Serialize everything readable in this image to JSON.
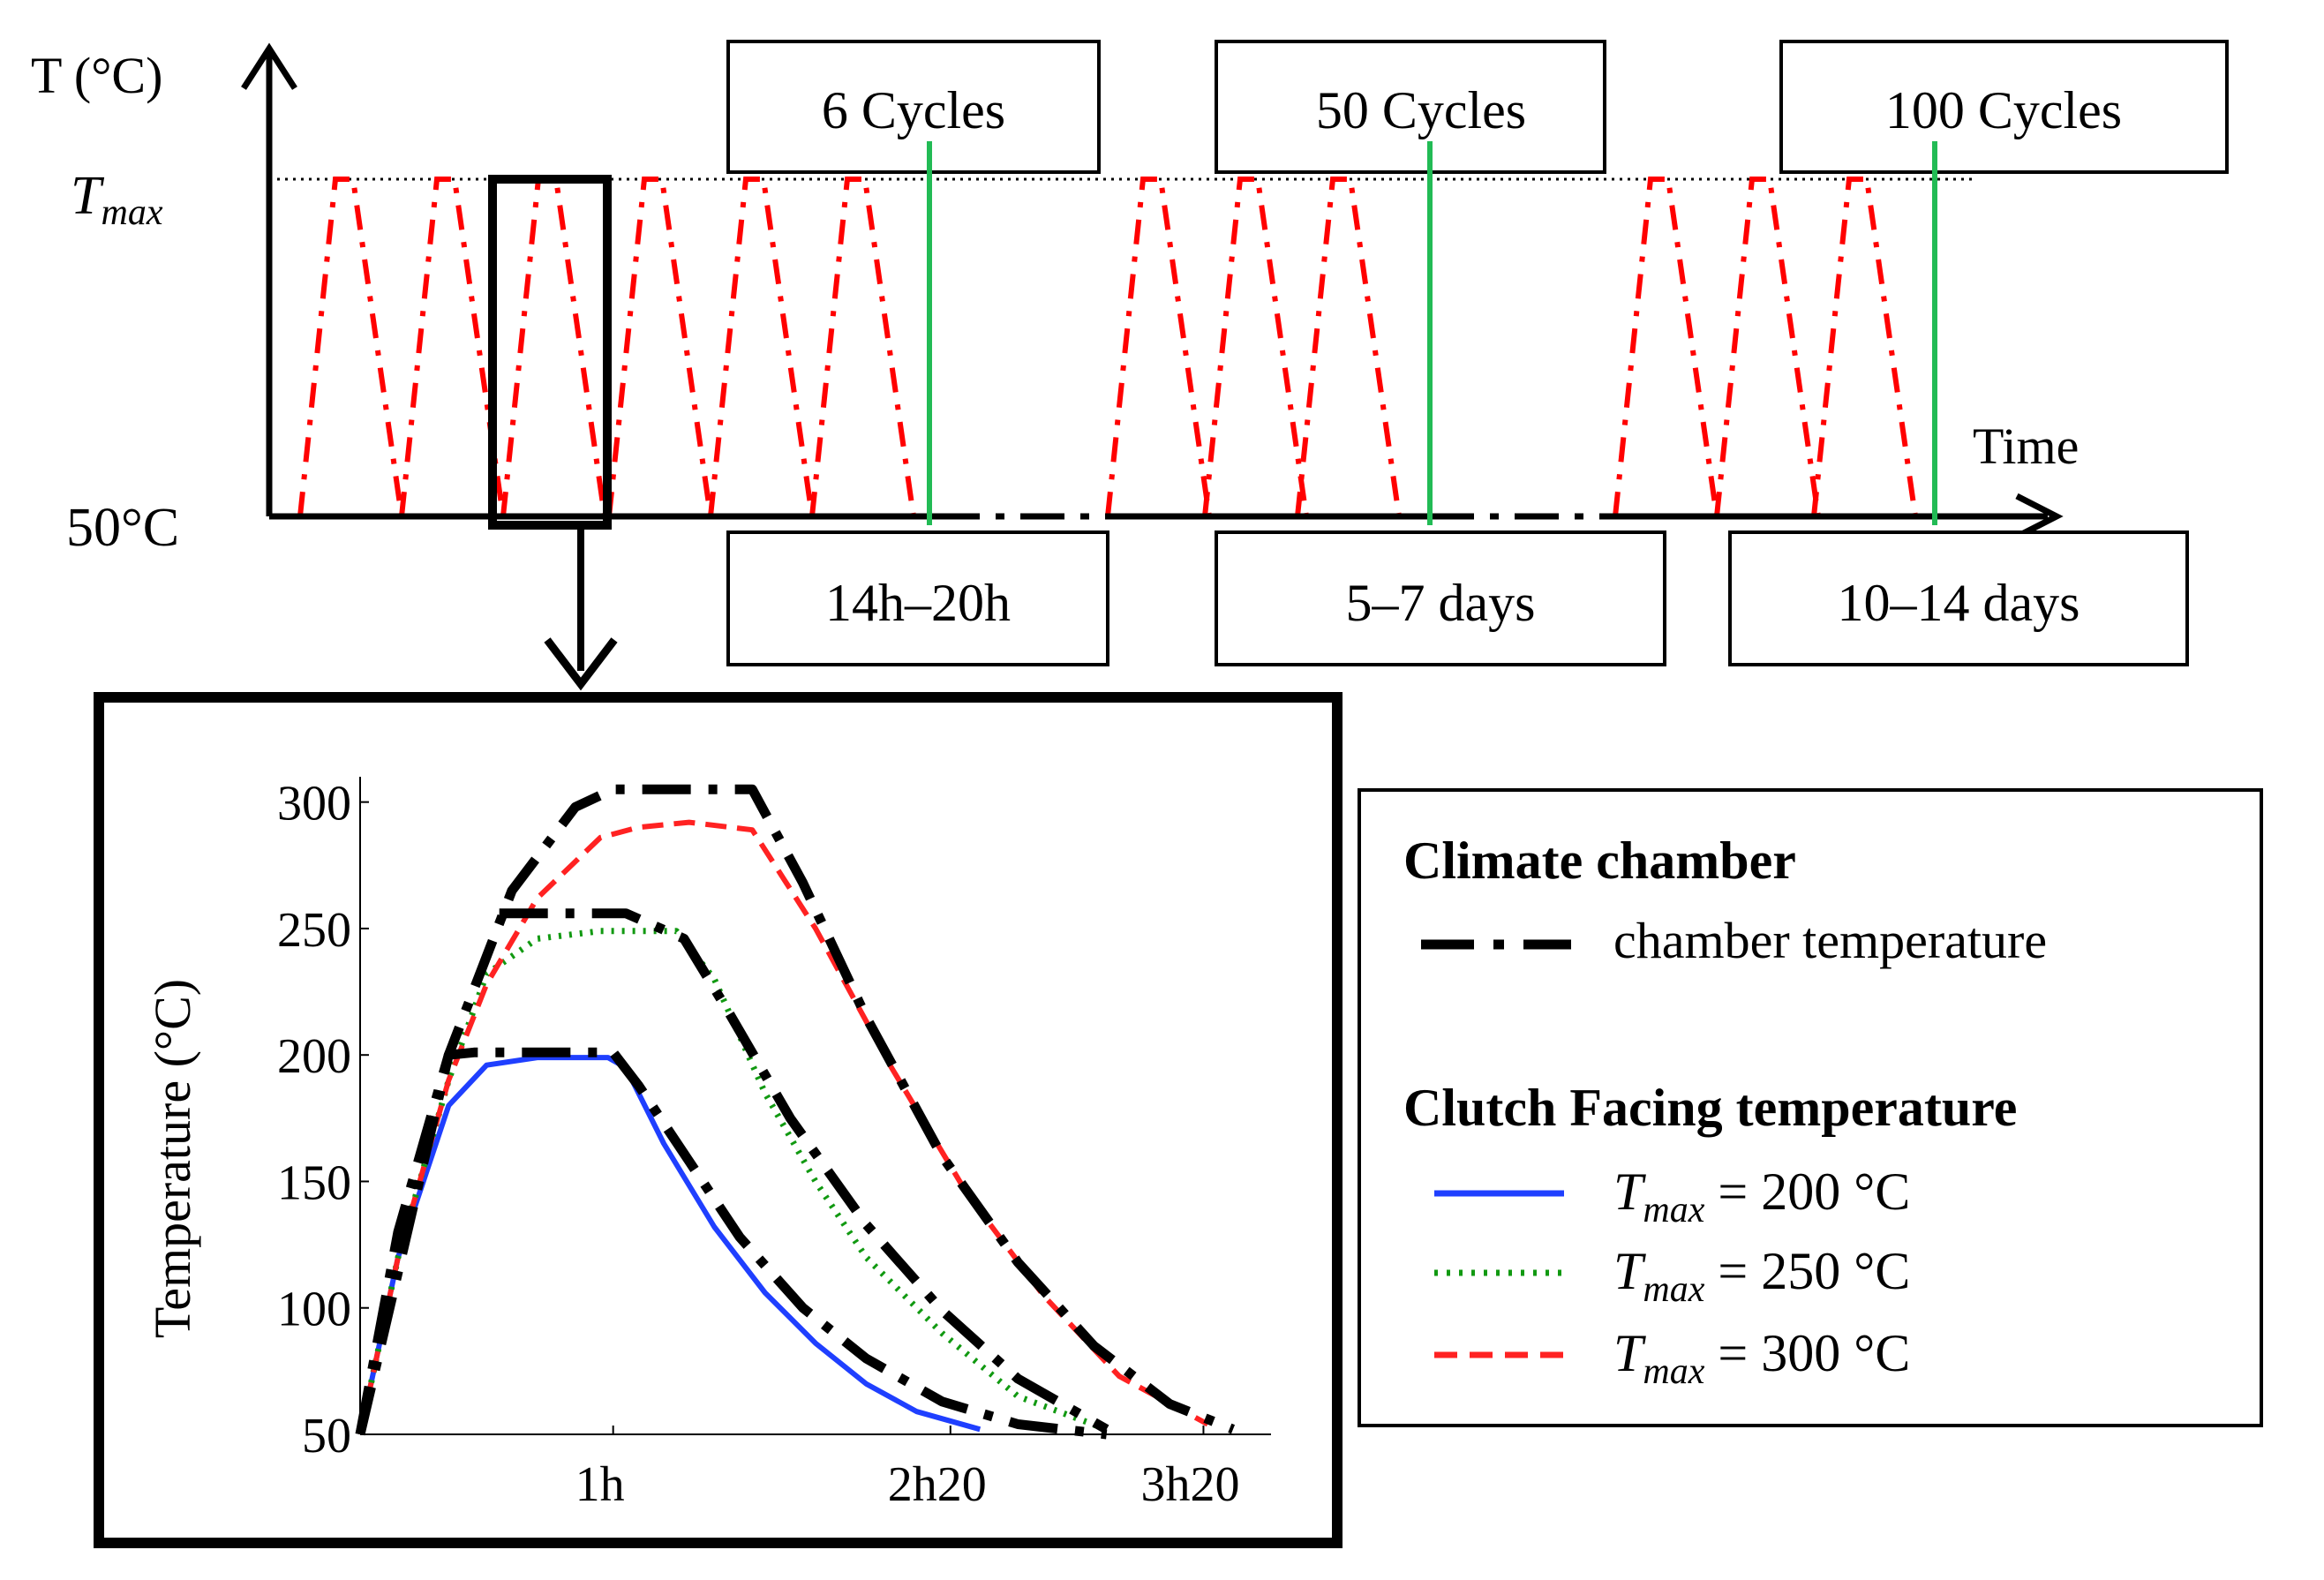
{
  "top": {
    "y_axis_label": "T (°C)",
    "tmax_label": {
      "base": "T",
      "sub": "max"
    },
    "baseline_label": "50°C",
    "x_axis_label": "Time",
    "cycle_boxes": [
      "6 Cycles",
      "50 Cycles",
      "100 Cycles"
    ],
    "duration_boxes": [
      "14h–20h",
      "5–7 days",
      "10–14 days"
    ],
    "colors": {
      "cycle": "#ff0000",
      "marker": "#22bb55",
      "axis": "#000000"
    }
  },
  "chart_data": {
    "type": "line",
    "title": "",
    "xlabel": "",
    "ylabel": "Temperature (°C)",
    "xlim": [
      0,
      3.6
    ],
    "ylim": [
      50,
      310
    ],
    "yticks": [
      "50",
      "100",
      "150",
      "200",
      "250",
      "300"
    ],
    "xticks": [
      "1h",
      "2h20",
      "3h20"
    ],
    "series": [
      {
        "name": "Tmax = 200 °C",
        "style": "solid",
        "color": "#1f3fff",
        "x": [
          0,
          0.15,
          0.35,
          0.5,
          0.7,
          0.98,
          1.05,
          1.2,
          1.4,
          1.6,
          1.8,
          2.0,
          2.2,
          2.45
        ],
        "y": [
          50,
          120,
          180,
          196,
          199,
          199,
          195,
          165,
          132,
          106,
          86,
          70,
          59,
          52
        ]
      },
      {
        "name": "Tmax = 250 °C",
        "style": "dotted",
        "color": "#119911",
        "x": [
          0,
          0.15,
          0.35,
          0.5,
          0.7,
          0.95,
          1.25,
          1.4,
          1.6,
          1.8,
          2.0,
          2.3,
          2.6,
          2.95
        ],
        "y": [
          50,
          120,
          190,
          232,
          246,
          249,
          249,
          230,
          185,
          150,
          120,
          90,
          65,
          52
        ]
      },
      {
        "name": "Tmax = 300 °C",
        "style": "dashed",
        "color": "#ff2222",
        "x": [
          0,
          0.15,
          0.35,
          0.5,
          0.7,
          0.95,
          1.1,
          1.3,
          1.55,
          1.8,
          2.1,
          2.4,
          2.7,
          3.0,
          3.35
        ],
        "y": [
          50,
          120,
          190,
          228,
          262,
          286,
          290,
          292,
          289,
          250,
          195,
          145,
          105,
          73,
          54
        ]
      },
      {
        "name": "chamber temperature",
        "style": "dashdot",
        "color": "#000000",
        "x": [
          0,
          0.15,
          0.35,
          0.45,
          0.7,
          1.0,
          1.1,
          1.3,
          1.5,
          1.75,
          2.0,
          2.3,
          2.6,
          2.95
        ],
        "y": [
          50,
          130,
          200,
          201,
          201,
          201,
          188,
          158,
          128,
          100,
          80,
          63,
          54,
          50
        ]
      },
      {
        "name": "chamber temperature 250",
        "style": "dashdot",
        "color": "#000000",
        "x": [
          0.55,
          0.8,
          1.05,
          1.28,
          1.45,
          1.7,
          2.0,
          2.3,
          2.6,
          2.95
        ],
        "y": [
          256,
          256,
          256,
          246,
          218,
          175,
          133,
          99,
          72,
          52
        ]
      },
      {
        "name": "chamber temperature 300",
        "style": "dashdot",
        "color": "#000000",
        "x": [
          0,
          0.35,
          0.6,
          0.85,
          1.0,
          1.25,
          1.55,
          1.75,
          2.0,
          2.3,
          2.6,
          2.9,
          3.2,
          3.45
        ],
        "y": [
          50,
          200,
          265,
          298,
          305,
          305,
          305,
          268,
          215,
          160,
          118,
          85,
          62,
          52
        ]
      }
    ]
  },
  "legend": {
    "group1_title": "Climate chamber",
    "chamber_label": "chamber temperature",
    "group2_title": "Clutch Facing  temperature",
    "entries": [
      {
        "var": "T",
        "sub": "max",
        "value": " = 200 °C",
        "color": "#1f3fff",
        "style": "solid"
      },
      {
        "var": "T",
        "sub": "max",
        "value": " = 250 °C",
        "color": "#119911",
        "style": "dotted"
      },
      {
        "var": "T",
        "sub": "max",
        "value": " = 300 °C",
        "color": "#ff2222",
        "style": "dashed"
      }
    ]
  }
}
